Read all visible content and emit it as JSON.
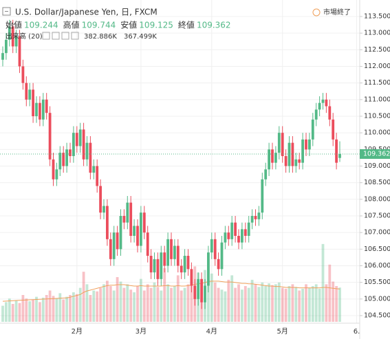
{
  "chart_data": {
    "type": "candlestick",
    "title": "U.S. Dollar/Japanese Yen, 日, FXCM",
    "status": "市場終了",
    "ohlc_labels": [
      "始値",
      "高値",
      "安値",
      "終値"
    ],
    "up_color": "#53b987",
    "down_color": "#eb4d5c",
    "ma_color": "#f0a05a",
    "open": [
      112.2,
      112.4,
      112.8,
      113.2,
      112.6,
      112.9,
      112.0,
      111.5,
      111.0,
      111.3,
      110.5,
      110.9,
      110.4,
      111.0,
      110.6,
      109.2,
      108.6,
      108.9,
      109.4,
      109.0,
      109.5,
      109.3,
      110.0,
      109.6,
      110.1,
      109.2,
      109.7,
      108.8,
      109.0,
      108.4,
      107.6,
      107.8,
      106.8,
      106.2,
      107.0,
      106.5,
      107.5,
      107.3,
      107.9,
      106.9,
      107.2,
      106.6,
      107.6,
      107.0,
      106.3,
      105.8,
      106.2,
      105.6,
      106.4,
      106.0,
      106.8,
      106.2,
      106.6,
      106.0,
      105.8,
      106.3,
      105.9,
      105.4,
      105.0,
      105.6,
      104.9,
      105.4,
      106.4,
      106.8,
      106.2,
      105.9,
      106.7,
      107.0,
      106.8,
      107.3,
      106.9,
      106.7,
      107.1,
      106.9,
      107.3,
      107.5,
      107.4,
      107.6,
      108.6,
      108.9,
      109.5,
      109.1,
      109.4,
      110.0,
      109.3,
      109.0,
      109.7,
      109.0,
      109.2,
      109.1,
      109.8,
      109.5,
      109.8,
      110.4,
      110.7,
      110.9,
      111.0,
      110.8,
      110.4,
      109.8,
      109.244
    ],
    "high": [
      112.6,
      113.0,
      113.4,
      113.4,
      113.1,
      113.1,
      112.2,
      111.7,
      111.5,
      111.5,
      111.1,
      111.1,
      111.2,
      111.2,
      110.8,
      109.4,
      109.1,
      109.6,
      109.6,
      109.7,
      109.7,
      110.2,
      110.2,
      110.3,
      110.3,
      109.9,
      109.9,
      109.2,
      109.2,
      108.6,
      108.0,
      108.0,
      107.0,
      107.2,
      107.2,
      107.7,
      107.7,
      108.1,
      108.1,
      107.4,
      107.4,
      107.8,
      107.8,
      107.2,
      106.5,
      106.4,
      106.4,
      106.6,
      106.6,
      107.0,
      107.0,
      106.8,
      106.8,
      106.2,
      106.5,
      106.5,
      106.1,
      105.6,
      105.8,
      105.8,
      105.6,
      106.6,
      107.0,
      107.0,
      106.4,
      106.9,
      107.2,
      107.2,
      107.5,
      107.5,
      107.1,
      107.3,
      107.3,
      107.5,
      107.7,
      107.7,
      107.8,
      108.8,
      109.1,
      109.7,
      109.7,
      109.6,
      110.2,
      110.2,
      109.5,
      109.9,
      109.9,
      109.4,
      109.4,
      110.0,
      110.0,
      110.0,
      110.6,
      110.9,
      111.1,
      111.2,
      111.2,
      111.0,
      110.6,
      110.0,
      109.744
    ],
    "low": [
      112.0,
      112.2,
      112.6,
      112.4,
      112.4,
      111.8,
      111.3,
      110.8,
      110.8,
      110.3,
      110.3,
      110.2,
      110.2,
      110.4,
      109.0,
      108.4,
      108.4,
      108.7,
      108.8,
      108.8,
      109.1,
      109.1,
      109.4,
      109.4,
      109.0,
      109.0,
      108.6,
      108.6,
      108.2,
      107.4,
      107.4,
      106.6,
      106.0,
      106.0,
      106.3,
      106.3,
      107.1,
      107.1,
      106.7,
      106.7,
      106.4,
      106.4,
      106.8,
      106.1,
      105.6,
      105.6,
      105.4,
      105.4,
      105.8,
      105.8,
      106.0,
      106.0,
      105.8,
      105.6,
      105.6,
      105.7,
      105.2,
      104.8,
      104.8,
      104.7,
      104.7,
      105.2,
      106.2,
      106.0,
      105.7,
      105.7,
      106.5,
      106.6,
      106.6,
      106.7,
      106.5,
      106.5,
      106.7,
      106.7,
      107.1,
      107.2,
      107.2,
      107.4,
      108.4,
      108.7,
      108.9,
      108.9,
      109.2,
      109.1,
      108.8,
      108.8,
      108.8,
      108.8,
      108.9,
      108.9,
      109.3,
      109.3,
      109.6,
      110.2,
      110.5,
      110.7,
      110.6,
      110.2,
      109.6,
      108.9,
      109.125
    ],
    "close": [
      112.4,
      112.8,
      113.2,
      112.6,
      112.9,
      112.0,
      111.5,
      111.0,
      111.3,
      110.5,
      110.9,
      110.4,
      111.0,
      110.6,
      109.2,
      108.6,
      108.9,
      109.4,
      109.0,
      109.5,
      109.3,
      110.0,
      109.6,
      110.1,
      109.2,
      109.7,
      108.8,
      109.0,
      108.4,
      107.6,
      107.8,
      106.8,
      106.2,
      107.0,
      106.5,
      107.5,
      107.3,
      107.9,
      106.9,
      107.2,
      106.6,
      107.6,
      107.0,
      106.3,
      105.8,
      106.2,
      105.6,
      106.4,
      106.0,
      106.8,
      106.2,
      106.6,
      106.0,
      105.8,
      106.3,
      105.9,
      105.4,
      105.0,
      105.6,
      104.9,
      105.4,
      106.4,
      106.8,
      106.2,
      105.9,
      106.7,
      107.0,
      106.8,
      107.3,
      106.9,
      106.7,
      107.1,
      106.9,
      107.3,
      107.5,
      107.4,
      107.6,
      108.6,
      108.9,
      109.5,
      109.1,
      109.4,
      110.0,
      109.3,
      109.0,
      109.7,
      109.0,
      109.2,
      109.1,
      109.8,
      109.5,
      109.8,
      110.4,
      110.7,
      110.9,
      111.0,
      110.8,
      110.4,
      109.8,
      109.1,
      109.362
    ],
    "volume": {
      "name": "出来高 (20)",
      "values": [
        180,
        220,
        260,
        200,
        240,
        210,
        300,
        260,
        230,
        250,
        280,
        220,
        270,
        300,
        350,
        290,
        260,
        320,
        250,
        280,
        300,
        330,
        310,
        380,
        560,
        420,
        300,
        350,
        340,
        380,
        420,
        460,
        400,
        350,
        500,
        450,
        380,
        420,
        360,
        330,
        400,
        480,
        350,
        420,
        380,
        440,
        390,
        350,
        600,
        420,
        380,
        400,
        520,
        350,
        380,
        420,
        470,
        620,
        550,
        480,
        580,
        700,
        540,
        440,
        380,
        360,
        340,
        470,
        520,
        380,
        420,
        360,
        400,
        380,
        470,
        420,
        390,
        440,
        400,
        430,
        410,
        420,
        440,
        380,
        370,
        400,
        420,
        390,
        350,
        370,
        420,
        380,
        400,
        420,
        370,
        870,
        420,
        640,
        450,
        400,
        382.886
      ],
      "last_label": "382.886K"
    },
    "volume_ma": {
      "values": [
        230,
        232,
        234,
        236,
        238,
        240,
        242,
        244,
        246,
        248,
        250,
        252,
        254,
        256,
        258,
        260,
        262,
        264,
        266,
        268,
        275,
        285,
        295,
        305,
        330,
        345,
        355,
        365,
        375,
        385,
        395,
        405,
        410,
        410,
        415,
        415,
        415,
        410,
        405,
        400,
        400,
        405,
        400,
        400,
        400,
        400,
        400,
        400,
        405,
        405,
        400,
        400,
        405,
        400,
        400,
        405,
        410,
        420,
        425,
        430,
        440,
        450,
        455,
        455,
        455,
        450,
        445,
        445,
        445,
        440,
        435,
        430,
        430,
        425,
        425,
        420,
        415,
        410,
        405,
        400,
        400,
        395,
        395,
        390,
        385,
        385,
        385,
        385,
        380,
        380,
        380,
        380,
        380,
        380,
        380,
        385,
        385,
        380,
        375,
        370,
        367.499
      ],
      "last_label": "367.499K"
    },
    "vlim": [
      0,
      1000
    ],
    "ylim": [
      104.5,
      113.5
    ],
    "yticks": [
      {
        "value": 104.5,
        "label": "104.500"
      },
      {
        "value": 105,
        "label": "105.000"
      },
      {
        "value": 105.5,
        "label": "105.500"
      },
      {
        "value": 106,
        "label": "106.000"
      },
      {
        "value": 106.5,
        "label": "106.500"
      },
      {
        "value": 107,
        "label": "107.000"
      },
      {
        "value": 107.5,
        "label": "107.500"
      },
      {
        "value": 108,
        "label": "108.000"
      },
      {
        "value": 108.5,
        "label": "108.500"
      },
      {
        "value": 109,
        "label": "109.000"
      },
      {
        "value": 109.5,
        "label": "109.500"
      },
      {
        "value": 110,
        "label": "110.000"
      },
      {
        "value": 110.5,
        "label": "110.500"
      },
      {
        "value": 111,
        "label": "111.000"
      },
      {
        "value": 111.5,
        "label": "111.500"
      },
      {
        "value": 112,
        "label": "112.000"
      },
      {
        "value": 112.5,
        "label": "112.500"
      },
      {
        "value": 113,
        "label": "113.000"
      },
      {
        "value": 113.5,
        "label": "113.500"
      }
    ],
    "xticks": [
      {
        "value": 22,
        "label": "2月"
      },
      {
        "value": 41,
        "label": "3月"
      },
      {
        "value": 62,
        "label": "4月"
      },
      {
        "value": 83,
        "label": "5月"
      },
      {
        "value": 105,
        "label": "6."
      }
    ],
    "grid": true
  }
}
